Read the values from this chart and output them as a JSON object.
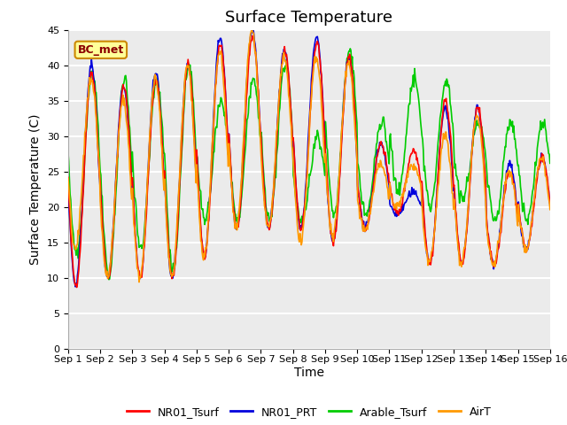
{
  "title": "Surface Temperature",
  "ylabel": "Surface Temperature (C)",
  "xlabel": "Time",
  "ylim": [
    0,
    45
  ],
  "yticks": [
    0,
    5,
    10,
    15,
    20,
    25,
    30,
    35,
    40,
    45
  ],
  "xlabels": [
    "Sep 1",
    "Sep 2",
    "Sep 3",
    "Sep 4",
    "Sep 5",
    "Sep 6",
    "Sep 7",
    "Sep 8",
    "Sep 9",
    "Sep 10",
    "Sep 11",
    "Sep 12",
    "Sep 13",
    "Sep 14",
    "Sep 15",
    "Sep 16"
  ],
  "bc_met_label": "BC_met",
  "series_labels": [
    "NR01_Tsurf",
    "NR01_PRT",
    "Arable_Tsurf",
    "AirT"
  ],
  "series_colors": [
    "#ff0000",
    "#0000dd",
    "#00cc00",
    "#ff9900"
  ],
  "plot_bg_color": "#ebebeb",
  "n_days": 15,
  "points_per_day": 48,
  "daily_min_NR01": [
    9,
    10,
    10,
    10,
    13,
    17,
    17,
    17,
    15,
    17,
    19,
    12,
    12,
    12,
    14
  ],
  "daily_max_NR01": [
    39,
    37,
    38,
    40,
    43,
    44,
    42,
    43,
    41,
    29,
    28,
    35,
    34,
    25,
    27
  ],
  "daily_min_PRT": [
    9,
    10,
    10,
    10,
    13,
    17,
    17,
    17,
    15,
    17,
    19,
    12,
    12,
    12,
    14
  ],
  "daily_max_PRT": [
    40,
    37,
    39,
    40,
    44,
    45,
    42,
    44,
    41,
    29,
    22,
    34,
    34,
    26,
    27
  ],
  "daily_min_Arable": [
    13,
    10,
    14,
    11,
    18,
    18,
    18,
    18,
    19,
    19,
    22,
    20,
    21,
    18,
    18
  ],
  "daily_max_Arable": [
    39,
    38,
    38,
    40,
    35,
    38,
    40,
    30,
    42,
    32,
    38,
    38,
    32,
    32,
    32
  ],
  "daily_min_AirT": [
    14,
    10,
    10,
    10,
    13,
    17,
    17,
    15,
    16,
    17,
    20,
    12,
    12,
    12,
    14
  ],
  "daily_max_AirT": [
    38,
    35,
    38,
    40,
    42,
    45,
    41,
    41,
    40,
    26,
    26,
    30,
    33,
    25,
    27
  ],
  "title_fontsize": 13,
  "axis_fontsize": 10,
  "tick_fontsize": 8,
  "legend_fontsize": 9,
  "line_width": 1.2,
  "figsize": [
    6.4,
    4.8
  ],
  "dpi": 100
}
